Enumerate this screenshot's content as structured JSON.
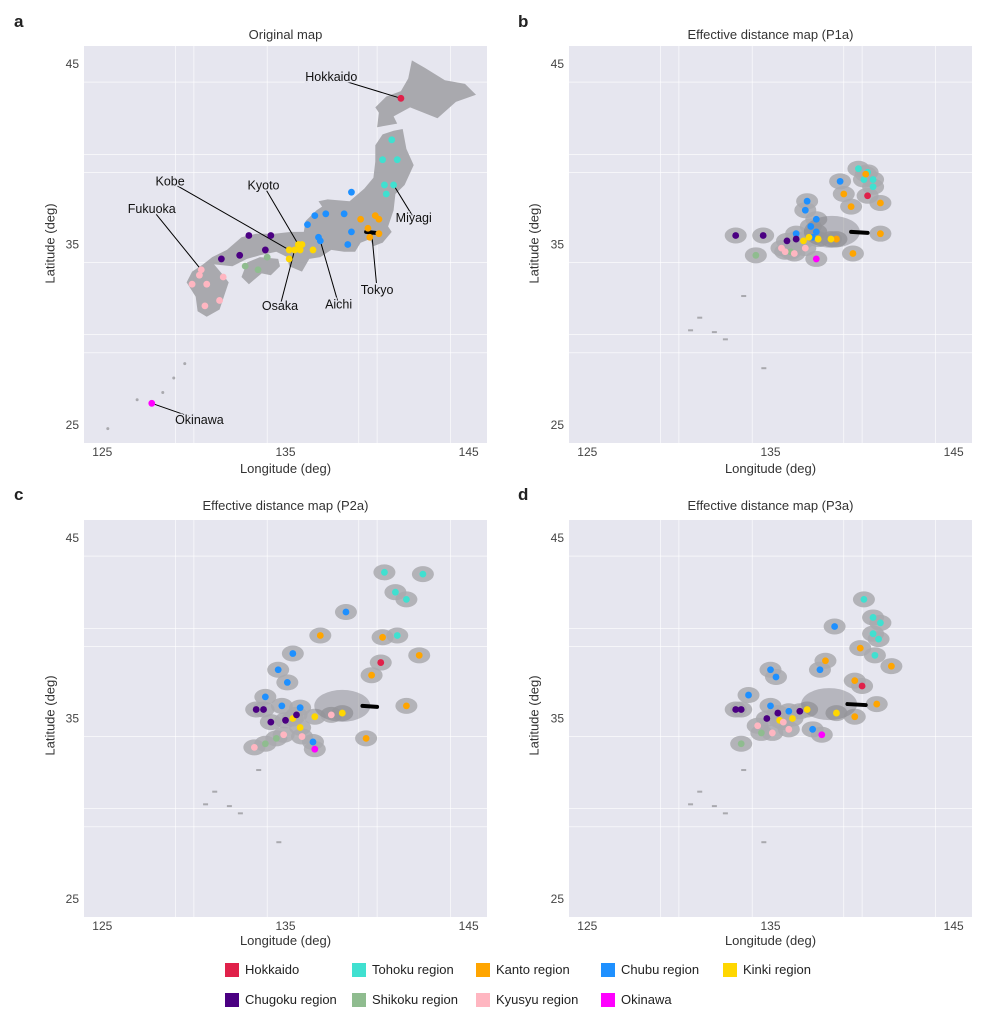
{
  "colors": {
    "Hokkaido": "#e0214a",
    "Tohoku": "#40e0d0",
    "Kanto": "#ffa500",
    "Chubu": "#1e90ff",
    "Kinki": "#ffd700",
    "Chugoku": "#4b0082",
    "Shikoku": "#8fbc8f",
    "Kyusyu": "#ffb6c1",
    "Okinawa": "#ff00ff",
    "panel_bg": "#e6e6ef",
    "grid": "#ffffff",
    "land": "#a9a9ae"
  },
  "legend": [
    {
      "key": "Hokkaido",
      "label": "Hokkaido"
    },
    {
      "key": "Tohoku",
      "label": "Tohoku region"
    },
    {
      "key": "Kanto",
      "label": "Kanto region"
    },
    {
      "key": "Chubu",
      "label": "Chubu region"
    },
    {
      "key": "Kinki",
      "label": "Kinki region"
    },
    {
      "key": "Chugoku",
      "label": "Chugoku region"
    },
    {
      "key": "Shikoku",
      "label": "Shikoku region"
    },
    {
      "key": "Kyusyu",
      "label": "Kyusyu region"
    },
    {
      "key": "Okinawa",
      "label": "Okinawa"
    }
  ],
  "chart_data": [
    {
      "id": "a",
      "panel_label": "a",
      "type": "scatter",
      "title": "Original map",
      "xlabel": "Longitude (deg)",
      "ylabel": "Latitude (deg)",
      "xlim": [
        124,
        146
      ],
      "ylim": [
        24,
        46
      ],
      "xticks": [
        125,
        135,
        145
      ],
      "yticks": [
        25,
        35,
        45
      ],
      "tick_labels_x": [
        "125",
        "135",
        "145"
      ],
      "tick_labels_y": [
        "25",
        "35",
        "45"
      ],
      "annotations": [
        {
          "text": "Hokkaido",
          "x": 141.3,
          "y": 43.1,
          "tx": 137.5,
          "ty": 44.5
        },
        {
          "text": "Miyagi",
          "x": 140.9,
          "y": 38.3,
          "tx": 142.0,
          "ty": 36.7
        },
        {
          "text": "Kyoto",
          "x": 135.7,
          "y": 35.0,
          "tx": 133.8,
          "ty": 38.5
        },
        {
          "text": "Kobe",
          "x": 135.2,
          "y": 34.7,
          "tx": 128.7,
          "ty": 38.7
        },
        {
          "text": "Fukuoka",
          "x": 130.4,
          "y": 33.6,
          "tx": 127.7,
          "ty": 37.2
        },
        {
          "text": "Osaka",
          "x": 135.5,
          "y": 34.7,
          "tx": 134.7,
          "ty": 31.8
        },
        {
          "text": "Aichi",
          "x": 136.9,
          "y": 35.2,
          "tx": 137.9,
          "ty": 31.9
        },
        {
          "text": "Tokyo",
          "x": 139.7,
          "y": 35.7,
          "tx": 140.0,
          "ty": 32.7
        },
        {
          "text": "Okinawa",
          "x": 127.7,
          "y": 26.2,
          "tx": 130.3,
          "ty": 25.5
        }
      ],
      "points": [
        {
          "r": "Hokkaido",
          "x": 141.3,
          "y": 43.1
        },
        {
          "r": "Tohoku",
          "x": 140.3,
          "y": 39.7
        },
        {
          "r": "Tohoku",
          "x": 141.1,
          "y": 39.7
        },
        {
          "r": "Tohoku",
          "x": 140.8,
          "y": 40.8
        },
        {
          "r": "Tohoku",
          "x": 140.4,
          "y": 38.3
        },
        {
          "r": "Tohoku",
          "x": 140.9,
          "y": 38.3
        },
        {
          "r": "Tohoku",
          "x": 140.5,
          "y": 37.8
        },
        {
          "r": "Kanto",
          "x": 140.1,
          "y": 36.4
        },
        {
          "r": "Kanto",
          "x": 139.1,
          "y": 36.4
        },
        {
          "r": "Kanto",
          "x": 139.9,
          "y": 36.6
        },
        {
          "r": "Kanto",
          "x": 140.1,
          "y": 35.6
        },
        {
          "r": "Kanto",
          "x": 139.6,
          "y": 35.4
        },
        {
          "r": "Kanto",
          "x": 139.5,
          "y": 35.9
        },
        {
          "r": "Chubu",
          "x": 138.6,
          "y": 37.9
        },
        {
          "r": "Chubu",
          "x": 136.6,
          "y": 36.6
        },
        {
          "r": "Chubu",
          "x": 137.2,
          "y": 36.7
        },
        {
          "r": "Chubu",
          "x": 136.2,
          "y": 36.1
        },
        {
          "r": "Chubu",
          "x": 138.2,
          "y": 36.7
        },
        {
          "r": "Chubu",
          "x": 138.6,
          "y": 35.7
        },
        {
          "r": "Chubu",
          "x": 136.8,
          "y": 35.4
        },
        {
          "r": "Chubu",
          "x": 138.4,
          "y": 35.0
        },
        {
          "r": "Chubu",
          "x": 136.9,
          "y": 35.2
        },
        {
          "r": "Kinki",
          "x": 135.7,
          "y": 35.0
        },
        {
          "r": "Kinki",
          "x": 135.5,
          "y": 34.7
        },
        {
          "r": "Kinki",
          "x": 135.2,
          "y": 34.7
        },
        {
          "r": "Kinki",
          "x": 136.5,
          "y": 34.7
        },
        {
          "r": "Kinki",
          "x": 135.8,
          "y": 34.7
        },
        {
          "r": "Kinki",
          "x": 135.9,
          "y": 35.0
        },
        {
          "r": "Kinki",
          "x": 135.2,
          "y": 34.2
        },
        {
          "r": "Chugoku",
          "x": 133.0,
          "y": 35.5
        },
        {
          "r": "Chugoku",
          "x": 134.2,
          "y": 35.5
        },
        {
          "r": "Chugoku",
          "x": 133.9,
          "y": 34.7
        },
        {
          "r": "Chugoku",
          "x": 132.5,
          "y": 34.4
        },
        {
          "r": "Chugoku",
          "x": 131.5,
          "y": 34.2
        },
        {
          "r": "Shikoku",
          "x": 134.0,
          "y": 34.3
        },
        {
          "r": "Shikoku",
          "x": 133.5,
          "y": 33.6
        },
        {
          "r": "Shikoku",
          "x": 132.8,
          "y": 33.8
        },
        {
          "r": "Kyusyu",
          "x": 130.4,
          "y": 33.6
        },
        {
          "r": "Kyusyu",
          "x": 130.3,
          "y": 33.3
        },
        {
          "r": "Kyusyu",
          "x": 129.9,
          "y": 32.8
        },
        {
          "r": "Kyusyu",
          "x": 130.7,
          "y": 32.8
        },
        {
          "r": "Kyusyu",
          "x": 131.6,
          "y": 33.2
        },
        {
          "r": "Kyusyu",
          "x": 131.4,
          "y": 31.9
        },
        {
          "r": "Kyusyu",
          "x": 130.6,
          "y": 31.6
        },
        {
          "r": "Okinawa",
          "x": 127.7,
          "y": 26.2
        }
      ],
      "tokyo_bar": {
        "x1": 139.4,
        "x2": 139.9,
        "y": 35.7
      }
    },
    {
      "id": "b",
      "panel_label": "b",
      "type": "scatter",
      "title": "Effective distance map (P1a)",
      "xlabel": "Longitude (deg)",
      "ylabel": "Latitude (deg)",
      "xlim": [
        124,
        146
      ],
      "ylim": [
        24,
        46
      ],
      "xticks": [
        125,
        135,
        145
      ],
      "yticks": [
        25,
        35,
        45
      ],
      "tick_labels_x": [
        "125",
        "135",
        "145"
      ],
      "tick_labels_y": [
        "25",
        "35",
        "45"
      ],
      "points": [
        {
          "r": "Hokkaido",
          "x": 140.3,
          "y": 37.7
        },
        {
          "r": "Tohoku",
          "x": 139.8,
          "y": 39.2
        },
        {
          "r": "Tohoku",
          "x": 140.3,
          "y": 39.0
        },
        {
          "r": "Tohoku",
          "x": 140.6,
          "y": 38.6
        },
        {
          "r": "Tohoku",
          "x": 140.1,
          "y": 38.6
        },
        {
          "r": "Tohoku",
          "x": 140.6,
          "y": 38.2
        },
        {
          "r": "Kanto",
          "x": 139.0,
          "y": 37.8
        },
        {
          "r": "Kanto",
          "x": 141.0,
          "y": 37.3
        },
        {
          "r": "Kanto",
          "x": 139.4,
          "y": 37.1
        },
        {
          "r": "Kanto",
          "x": 140.2,
          "y": 38.9
        },
        {
          "r": "Kanto",
          "x": 141.0,
          "y": 35.6
        },
        {
          "r": "Kanto",
          "x": 139.5,
          "y": 34.5
        },
        {
          "r": "Kanto",
          "x": 138.6,
          "y": 35.3
        },
        {
          "r": "Chubu",
          "x": 138.8,
          "y": 38.5
        },
        {
          "r": "Chubu",
          "x": 137.0,
          "y": 37.4
        },
        {
          "r": "Chubu",
          "x": 136.9,
          "y": 36.9
        },
        {
          "r": "Chubu",
          "x": 137.5,
          "y": 36.4
        },
        {
          "r": "Chubu",
          "x": 137.2,
          "y": 36.0
        },
        {
          "r": "Chubu",
          "x": 137.3,
          "y": 35.4
        },
        {
          "r": "Chubu",
          "x": 136.4,
          "y": 35.6
        },
        {
          "r": "Chubu",
          "x": 137.5,
          "y": 35.7
        },
        {
          "r": "Kinki",
          "x": 138.3,
          "y": 35.3
        },
        {
          "r": "Kinki",
          "x": 137.6,
          "y": 35.3
        },
        {
          "r": "Kinki",
          "x": 136.8,
          "y": 35.2
        },
        {
          "r": "Kinki",
          "x": 137.1,
          "y": 35.4
        },
        {
          "r": "Chugoku",
          "x": 133.1,
          "y": 35.5
        },
        {
          "r": "Chugoku",
          "x": 134.6,
          "y": 35.5
        },
        {
          "r": "Chugoku",
          "x": 135.9,
          "y": 35.2
        },
        {
          "r": "Chugoku",
          "x": 136.4,
          "y": 35.3
        },
        {
          "r": "Shikoku",
          "x": 134.2,
          "y": 34.4
        },
        {
          "r": "Shikoku",
          "x": 136.1,
          "y": 34.6
        },
        {
          "r": "Kyusyu",
          "x": 135.8,
          "y": 34.6
        },
        {
          "r": "Kyusyu",
          "x": 136.3,
          "y": 34.5
        },
        {
          "r": "Kyusyu",
          "x": 136.9,
          "y": 34.8
        },
        {
          "r": "Kyusyu",
          "x": 135.6,
          "y": 34.8
        },
        {
          "r": "Okinawa",
          "x": 137.5,
          "y": 34.2
        }
      ],
      "tokyo_bar": {
        "x1": 139.4,
        "x2": 140.3,
        "y": 35.7
      }
    },
    {
      "id": "c",
      "panel_label": "c",
      "type": "scatter",
      "title": "Effective distance map (P2a)",
      "xlabel": "Longitude (deg)",
      "ylabel": "Latitude (deg)",
      "xlim": [
        124,
        146
      ],
      "ylim": [
        24,
        46
      ],
      "xticks": [
        125,
        135,
        145
      ],
      "yticks": [
        25,
        35,
        45
      ],
      "tick_labels_x": [
        "125",
        "135",
        "145"
      ],
      "tick_labels_y": [
        "25",
        "35",
        "45"
      ],
      "points": [
        {
          "r": "Hokkaido",
          "x": 140.2,
          "y": 38.1
        },
        {
          "r": "Tohoku",
          "x": 140.4,
          "y": 43.1
        },
        {
          "r": "Tohoku",
          "x": 142.5,
          "y": 43.0
        },
        {
          "r": "Tohoku",
          "x": 141.0,
          "y": 42.0
        },
        {
          "r": "Tohoku",
          "x": 141.6,
          "y": 41.6
        },
        {
          "r": "Tohoku",
          "x": 141.1,
          "y": 39.6
        },
        {
          "r": "Kanto",
          "x": 136.9,
          "y": 39.6
        },
        {
          "r": "Kanto",
          "x": 140.3,
          "y": 39.5
        },
        {
          "r": "Kanto",
          "x": 142.3,
          "y": 38.5
        },
        {
          "r": "Kanto",
          "x": 139.7,
          "y": 37.4
        },
        {
          "r": "Kanto",
          "x": 141.6,
          "y": 35.7
        },
        {
          "r": "Kanto",
          "x": 139.4,
          "y": 33.9
        },
        {
          "r": "Chubu",
          "x": 138.3,
          "y": 40.9
        },
        {
          "r": "Chubu",
          "x": 135.4,
          "y": 38.6
        },
        {
          "r": "Chubu",
          "x": 134.6,
          "y": 37.7
        },
        {
          "r": "Chubu",
          "x": 135.1,
          "y": 37.0
        },
        {
          "r": "Chubu",
          "x": 133.9,
          "y": 36.2
        },
        {
          "r": "Chubu",
          "x": 134.8,
          "y": 35.7
        },
        {
          "r": "Chubu",
          "x": 135.8,
          "y": 35.6
        },
        {
          "r": "Chubu",
          "x": 136.5,
          "y": 33.7
        },
        {
          "r": "Kinki",
          "x": 138.1,
          "y": 35.3
        },
        {
          "r": "Kinki",
          "x": 136.6,
          "y": 35.1
        },
        {
          "r": "Kinki",
          "x": 135.4,
          "y": 35.0
        },
        {
          "r": "Kinki",
          "x": 135.8,
          "y": 34.5
        },
        {
          "r": "Chugoku",
          "x": 133.4,
          "y": 35.5
        },
        {
          "r": "Chugoku",
          "x": 133.8,
          "y": 35.5
        },
        {
          "r": "Chugoku",
          "x": 134.2,
          "y": 34.8
        },
        {
          "r": "Chugoku",
          "x": 135.0,
          "y": 34.9
        },
        {
          "r": "Chugoku",
          "x": 135.6,
          "y": 35.2
        },
        {
          "r": "Shikoku",
          "x": 133.9,
          "y": 33.6
        },
        {
          "r": "Shikoku",
          "x": 134.5,
          "y": 33.9
        },
        {
          "r": "Kyusyu",
          "x": 133.3,
          "y": 33.4
        },
        {
          "r": "Kyusyu",
          "x": 134.9,
          "y": 34.1
        },
        {
          "r": "Kyusyu",
          "x": 135.9,
          "y": 34.0
        },
        {
          "r": "Kyusyu",
          "x": 137.5,
          "y": 35.2
        },
        {
          "r": "Okinawa",
          "x": 136.6,
          "y": 33.3
        }
      ],
      "tokyo_bar": {
        "x1": 139.2,
        "x2": 140.0,
        "y": 35.7
      }
    },
    {
      "id": "d",
      "panel_label": "d",
      "type": "scatter",
      "title": "Effective distance map (P3a)",
      "xlabel": "Longitude (deg)",
      "ylabel": "Latitude (deg)",
      "xlim": [
        124,
        146
      ],
      "ylim": [
        24,
        46
      ],
      "xticks": [
        125,
        135,
        145
      ],
      "yticks": [
        25,
        35,
        45
      ],
      "tick_labels_x": [
        "125",
        "135",
        "145"
      ],
      "tick_labels_y": [
        "25",
        "35",
        "45"
      ],
      "points": [
        {
          "r": "Hokkaido",
          "x": 140.0,
          "y": 36.8
        },
        {
          "r": "Tohoku",
          "x": 140.1,
          "y": 41.6
        },
        {
          "r": "Tohoku",
          "x": 140.6,
          "y": 40.6
        },
        {
          "r": "Tohoku",
          "x": 141.0,
          "y": 40.3
        },
        {
          "r": "Tohoku",
          "x": 140.6,
          "y": 39.7
        },
        {
          "r": "Tohoku",
          "x": 140.9,
          "y": 39.4
        },
        {
          "r": "Tohoku",
          "x": 140.7,
          "y": 38.5
        },
        {
          "r": "Kanto",
          "x": 138.0,
          "y": 38.2
        },
        {
          "r": "Kanto",
          "x": 139.9,
          "y": 38.9
        },
        {
          "r": "Kanto",
          "x": 141.6,
          "y": 37.9
        },
        {
          "r": "Kanto",
          "x": 139.6,
          "y": 37.1
        },
        {
          "r": "Kanto",
          "x": 140.8,
          "y": 35.8
        },
        {
          "r": "Kanto",
          "x": 139.6,
          "y": 35.1
        },
        {
          "r": "Chubu",
          "x": 138.5,
          "y": 40.1
        },
        {
          "r": "Chubu",
          "x": 135.0,
          "y": 37.7
        },
        {
          "r": "Chubu",
          "x": 137.7,
          "y": 37.7
        },
        {
          "r": "Chubu",
          "x": 135.3,
          "y": 37.3
        },
        {
          "r": "Chubu",
          "x": 133.8,
          "y": 36.3
        },
        {
          "r": "Chubu",
          "x": 135.0,
          "y": 35.7
        },
        {
          "r": "Chubu",
          "x": 136.0,
          "y": 35.4
        },
        {
          "r": "Chubu",
          "x": 137.3,
          "y": 34.4
        },
        {
          "r": "Kinki",
          "x": 138.6,
          "y": 35.3
        },
        {
          "r": "Kinki",
          "x": 137.0,
          "y": 35.5
        },
        {
          "r": "Kinki",
          "x": 136.2,
          "y": 35.0
        },
        {
          "r": "Kinki",
          "x": 135.5,
          "y": 34.9
        },
        {
          "r": "Chugoku",
          "x": 133.1,
          "y": 35.5
        },
        {
          "r": "Chugoku",
          "x": 133.4,
          "y": 35.5
        },
        {
          "r": "Chugoku",
          "x": 134.8,
          "y": 35.0
        },
        {
          "r": "Chugoku",
          "x": 135.4,
          "y": 35.3
        },
        {
          "r": "Chugoku",
          "x": 136.6,
          "y": 35.4
        },
        {
          "r": "Shikoku",
          "x": 133.4,
          "y": 33.6
        },
        {
          "r": "Shikoku",
          "x": 134.5,
          "y": 34.2
        },
        {
          "r": "Kyusyu",
          "x": 134.3,
          "y": 34.6
        },
        {
          "r": "Kyusyu",
          "x": 135.1,
          "y": 34.2
        },
        {
          "r": "Kyusyu",
          "x": 136.0,
          "y": 34.4
        },
        {
          "r": "Kyusyu",
          "x": 135.7,
          "y": 34.8
        },
        {
          "r": "Okinawa",
          "x": 137.8,
          "y": 34.1
        }
      ],
      "tokyo_bar": {
        "x1": 139.2,
        "x2": 140.2,
        "y": 35.8
      }
    }
  ]
}
